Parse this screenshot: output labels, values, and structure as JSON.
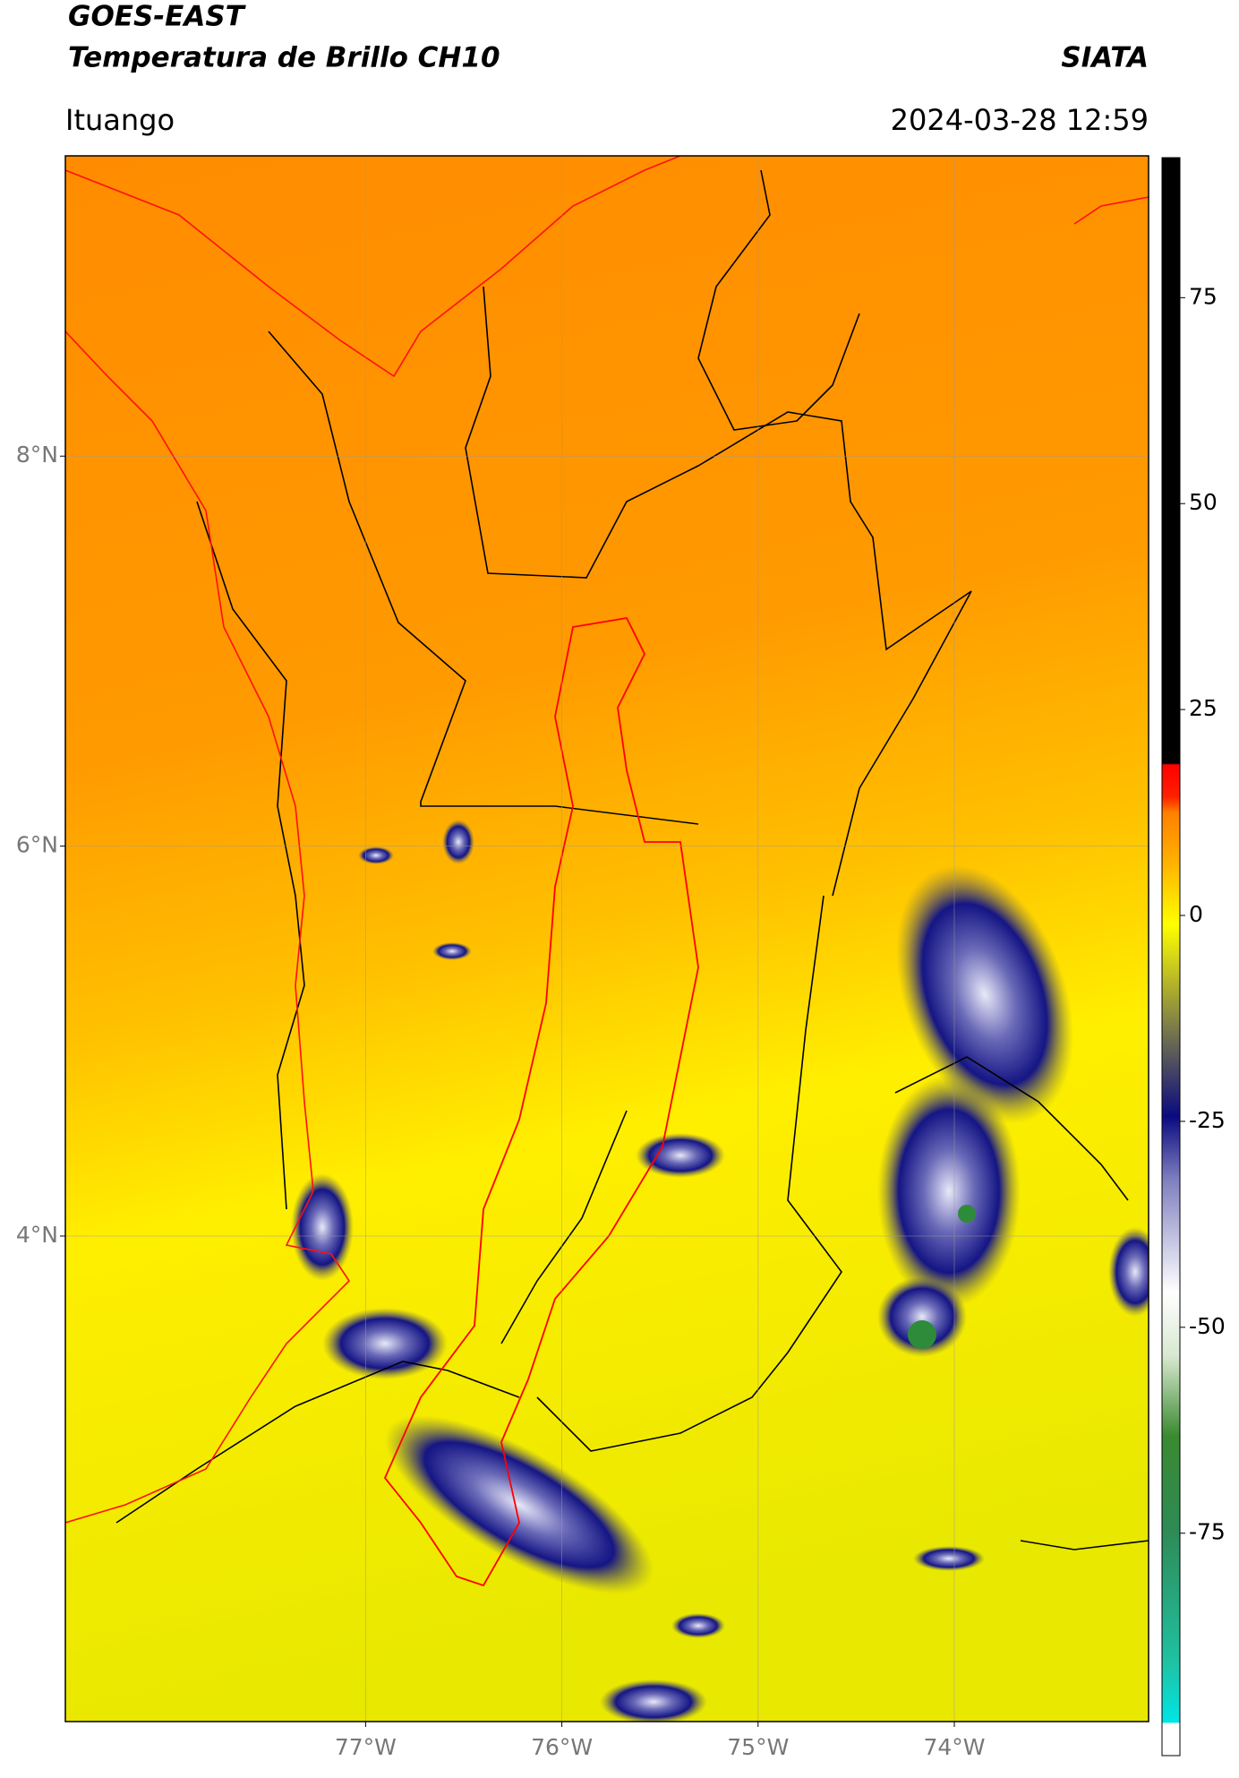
{
  "header": {
    "satellite": "GOES-EAST",
    "product": "Temperatura de Brillo CH10",
    "source": "SIATA",
    "location": "Ituango",
    "datetime": "2024-03-28 12:59"
  },
  "map": {
    "lon_range": [
      -78.53,
      -73.01
    ],
    "lat_range": [
      1.51,
      9.54
    ],
    "lon_ticks": [
      {
        "value": -77,
        "label": "77°W"
      },
      {
        "value": -76,
        "label": "76°W"
      },
      {
        "value": -75,
        "label": "75°W"
      },
      {
        "value": -74,
        "label": "74°W"
      }
    ],
    "lat_ticks": [
      {
        "value": 8,
        "label": "8°N"
      },
      {
        "value": 6,
        "label": "6°N"
      },
      {
        "value": 4,
        "label": "4°N"
      }
    ],
    "grid": true,
    "colorbar": {
      "range": [
        -102,
        92
      ],
      "ticks": [
        75,
        50,
        25,
        0,
        -25,
        -50,
        -75
      ]
    }
  }
}
